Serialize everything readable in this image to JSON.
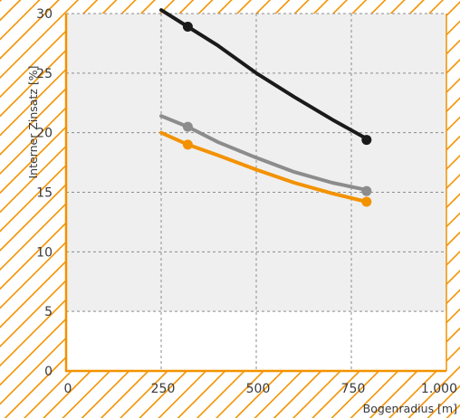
{
  "chart_data": {
    "type": "line",
    "title": "",
    "xlabel": "Bogenradius [m]",
    "ylabel": "Interner Zinsatz [%]",
    "xlim": [
      0,
      1000
    ],
    "ylim": [
      0,
      30
    ],
    "x_ticks": [
      0,
      250,
      500,
      750,
      1000
    ],
    "x_tick_labels": [
      "0",
      "250",
      "500",
      "750",
      "1.000"
    ],
    "y_ticks": [
      0,
      5,
      10,
      15,
      20,
      25,
      30
    ],
    "y_tick_labels": [
      "0",
      "5",
      "10",
      "15",
      "20",
      "25",
      "30"
    ],
    "grid": true,
    "hatched_band_above": 5,
    "colors": {
      "axis": "#f39200",
      "hatch": "#f39200",
      "plot_background": "#efefef",
      "grid": "#8c8c8c"
    },
    "series": [
      {
        "color": "#1a1a1a",
        "line": [
          [
            250,
            30.3
          ],
          [
            320,
            28.9
          ],
          [
            400,
            27.3
          ],
          [
            500,
            25.0
          ],
          [
            600,
            23.0
          ],
          [
            700,
            21.1
          ],
          [
            790,
            19.5
          ]
        ],
        "points": [
          [
            320,
            28.9
          ],
          [
            790,
            19.4
          ]
        ]
      },
      {
        "color": "#8c8c8c",
        "line": [
          [
            250,
            21.4
          ],
          [
            320,
            20.5
          ],
          [
            400,
            19.2
          ],
          [
            500,
            17.9
          ],
          [
            600,
            16.7
          ],
          [
            700,
            15.8
          ],
          [
            790,
            15.2
          ]
        ],
        "points": [
          [
            320,
            20.5
          ],
          [
            790,
            15.1
          ]
        ]
      },
      {
        "color": "#f39200",
        "line": [
          [
            250,
            20.0
          ],
          [
            320,
            19.0
          ],
          [
            400,
            18.1
          ],
          [
            500,
            16.9
          ],
          [
            600,
            15.8
          ],
          [
            700,
            14.9
          ],
          [
            790,
            14.2
          ]
        ],
        "points": [
          [
            320,
            19.0
          ],
          [
            790,
            14.2
          ]
        ]
      }
    ]
  }
}
